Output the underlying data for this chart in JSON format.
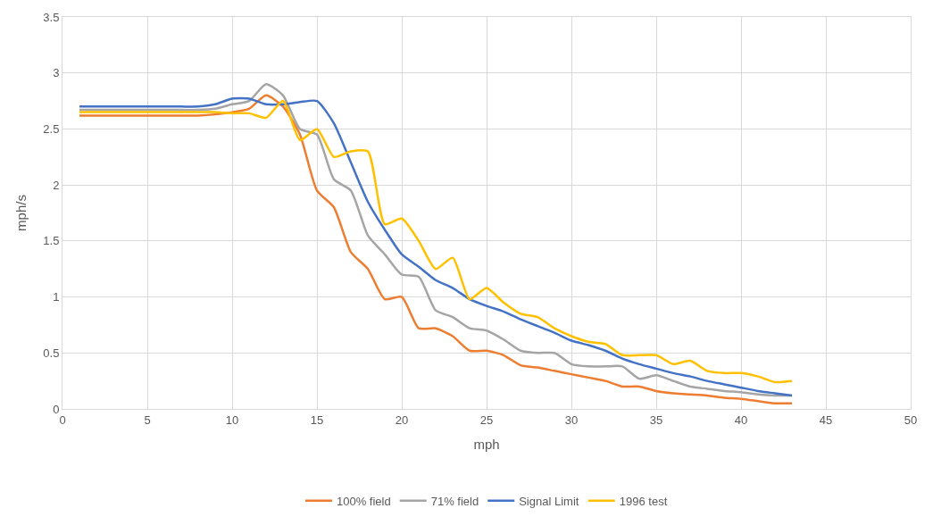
{
  "chart_data": {
    "type": "line",
    "xlabel": "mph",
    "ylabel": "mph/s",
    "x": [
      1,
      2,
      3,
      4,
      5,
      6,
      7,
      8,
      9,
      10,
      11,
      12,
      13,
      14,
      15,
      16,
      17,
      18,
      19,
      20,
      21,
      22,
      23,
      24,
      25,
      26,
      27,
      28,
      29,
      30,
      31,
      32,
      33,
      34,
      35,
      36,
      37,
      38,
      39,
      40,
      41,
      42,
      43
    ],
    "series": [
      {
        "name": "100% field",
        "color": "#ed7d31",
        "values": [
          2.62,
          2.62,
          2.62,
          2.62,
          2.62,
          2.62,
          2.62,
          2.62,
          2.63,
          2.65,
          2.68,
          2.8,
          2.7,
          2.45,
          1.95,
          1.8,
          1.4,
          1.25,
          0.98,
          1.0,
          0.72,
          0.72,
          0.65,
          0.52,
          0.52,
          0.48,
          0.39,
          0.37,
          0.34,
          0.31,
          0.28,
          0.25,
          0.2,
          0.2,
          0.16,
          0.14,
          0.13,
          0.12,
          0.1,
          0.09,
          0.07,
          0.05,
          0.05
        ]
      },
      {
        "name": "71% field",
        "color": "#a5a5a5",
        "values": [
          2.67,
          2.67,
          2.67,
          2.67,
          2.67,
          2.67,
          2.67,
          2.67,
          2.68,
          2.72,
          2.75,
          2.9,
          2.8,
          2.5,
          2.45,
          2.05,
          1.95,
          1.55,
          1.38,
          1.2,
          1.18,
          0.88,
          0.82,
          0.72,
          0.7,
          0.62,
          0.52,
          0.5,
          0.5,
          0.4,
          0.38,
          0.38,
          0.38,
          0.27,
          0.3,
          0.25,
          0.2,
          0.18,
          0.16,
          0.15,
          0.13,
          0.12,
          0.12
        ]
      },
      {
        "name": "Signal Limit",
        "color": "#4472c4",
        "values": [
          2.7,
          2.7,
          2.7,
          2.7,
          2.7,
          2.7,
          2.7,
          2.7,
          2.72,
          2.77,
          2.77,
          2.72,
          2.72,
          2.74,
          2.75,
          2.55,
          2.2,
          1.85,
          1.6,
          1.38,
          1.27,
          1.15,
          1.08,
          0.98,
          0.92,
          0.87,
          0.8,
          0.74,
          0.68,
          0.61,
          0.57,
          0.52,
          0.45,
          0.4,
          0.36,
          0.32,
          0.29,
          0.25,
          0.22,
          0.19,
          0.16,
          0.14,
          0.12
        ]
      },
      {
        "name": "1996 test",
        "color": "#ffc000",
        "values": [
          2.65,
          2.65,
          2.65,
          2.65,
          2.65,
          2.65,
          2.65,
          2.65,
          2.65,
          2.64,
          2.64,
          2.6,
          2.75,
          2.4,
          2.5,
          2.25,
          2.3,
          2.3,
          1.65,
          1.7,
          1.5,
          1.25,
          1.35,
          0.98,
          1.08,
          0.95,
          0.85,
          0.82,
          0.72,
          0.65,
          0.6,
          0.58,
          0.48,
          0.48,
          0.48,
          0.4,
          0.43,
          0.34,
          0.32,
          0.32,
          0.29,
          0.24,
          0.25
        ]
      }
    ],
    "xlim": [
      0,
      50
    ],
    "xticks": [
      0,
      5,
      10,
      15,
      20,
      25,
      30,
      35,
      40,
      45,
      50
    ],
    "ylim": [
      0,
      3.5
    ],
    "yticks": [
      0,
      0.5,
      1,
      1.5,
      2,
      2.5,
      3,
      3.5
    ],
    "grid": true,
    "legend": "bottom",
    "marker": "none",
    "line_style": "solid"
  }
}
